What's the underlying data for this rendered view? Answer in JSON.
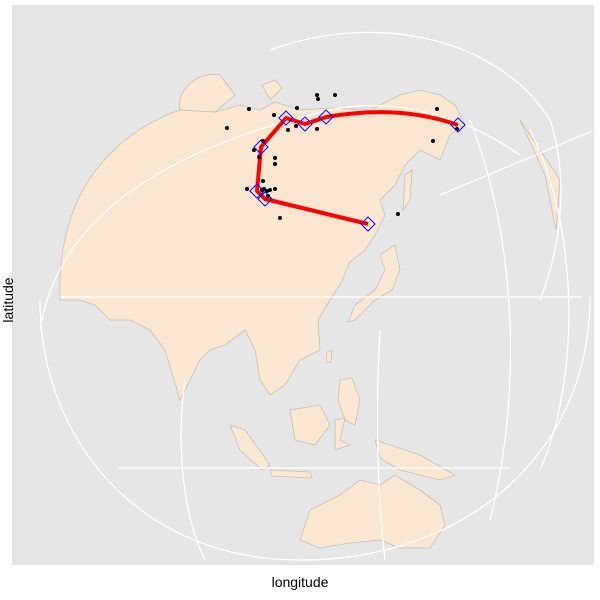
{
  "axes": {
    "xlabel": "longitude",
    "ylabel": "latitude"
  },
  "projection": "orthographic",
  "colors": {
    "panel": "#e5e5e5",
    "land": "#f8e6d0",
    "border": "#c8c0b4",
    "graticule": "#ffffff",
    "route": "#ff0000",
    "waypoint": "#0000ff",
    "observation": "#000000"
  },
  "layers": {
    "route": "red path line",
    "waypoints": "blue diamonds",
    "observations": "black points"
  }
}
